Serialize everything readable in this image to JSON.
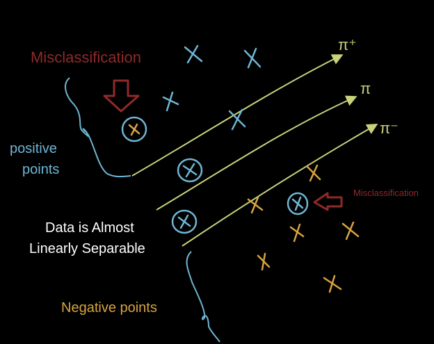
{
  "labels": {
    "misclass_top": "Misclassification",
    "misclass_right": "Misclassification",
    "positive_line1": "positive",
    "positive_line2": "points",
    "data_line1": "Data is Almost",
    "data_line2": "Linearly Separable",
    "negative": "Negative points",
    "plane_upper": "π⁺",
    "plane_mid": "π",
    "plane_lower": "π⁻"
  },
  "colors": {
    "background": "#000000",
    "positive": "#6fb7d6",
    "negative": "#d9a441",
    "planes": "#c9d27a",
    "misclassification": "#8f2a2a",
    "caption": "#ffffff"
  }
}
